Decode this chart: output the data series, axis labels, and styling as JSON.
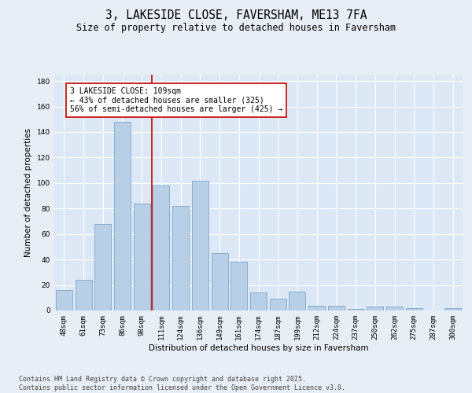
{
  "title1": "3, LAKESIDE CLOSE, FAVERSHAM, ME13 7FA",
  "title2": "Size of property relative to detached houses in Faversham",
  "xlabel": "Distribution of detached houses by size in Faversham",
  "ylabel": "Number of detached properties",
  "categories": [
    "48sqm",
    "61sqm",
    "73sqm",
    "86sqm",
    "98sqm",
    "111sqm",
    "124sqm",
    "136sqm",
    "149sqm",
    "161sqm",
    "174sqm",
    "187sqm",
    "199sqm",
    "212sqm",
    "224sqm",
    "237sqm",
    "250sqm",
    "262sqm",
    "275sqm",
    "287sqm",
    "300sqm"
  ],
  "values": [
    16,
    24,
    68,
    148,
    84,
    98,
    82,
    102,
    45,
    38,
    14,
    9,
    15,
    4,
    4,
    1,
    3,
    3,
    2,
    0,
    2
  ],
  "bar_color": "#b8cfe8",
  "bar_edge_color": "#7399c0",
  "vline_index": 5,
  "vline_color": "#cc0000",
  "annotation_line1": "3 LAKESIDE CLOSE: 109sqm",
  "annotation_line2": "← 43% of detached houses are smaller (325)",
  "annotation_line3": "56% of semi-detached houses are larger (425) →",
  "background_color": "#e8eef5",
  "plot_bg_color": "#dce8f5",
  "grid_color": "#ffffff",
  "ylim_max": 185,
  "yticks": [
    0,
    20,
    40,
    60,
    80,
    100,
    120,
    140,
    160,
    180
  ],
  "footnote": "Contains HM Land Registry data © Crown copyright and database right 2025.\nContains public sector information licensed under the Open Government Licence v3.0.",
  "title_fontsize": 10.5,
  "subtitle_fontsize": 8.5,
  "axis_label_fontsize": 7.5,
  "tick_fontsize": 6.5,
  "annotation_fontsize": 7,
  "footnote_fontsize": 6
}
